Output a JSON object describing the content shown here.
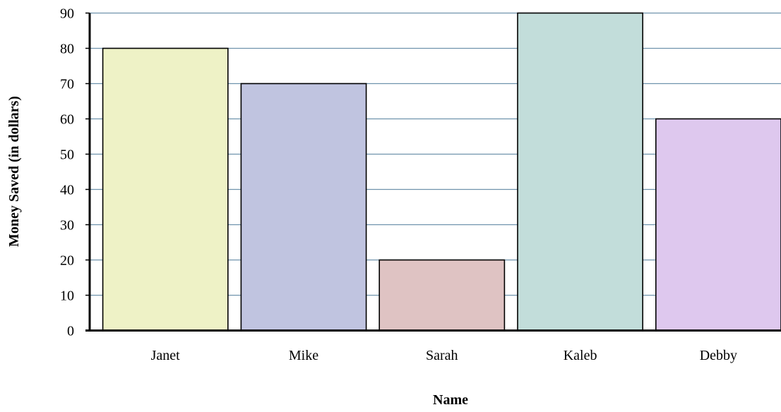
{
  "chart_data": {
    "type": "bar",
    "categories": [
      "Janet",
      "Mike",
      "Sarah",
      "Kaleb",
      "Debby"
    ],
    "values": [
      80,
      70,
      20,
      90,
      60
    ],
    "bar_colors": [
      "#eef2c6",
      "#c0c4e0",
      "#dfc3c3",
      "#c2ddda",
      "#dec8ee"
    ],
    "gridline_color": "#6f93ad",
    "title": "",
    "xlabel": "Name",
    "ylabel": "Money Saved (in dollars)",
    "ylim": [
      0,
      90
    ],
    "y_ticks": [
      0,
      10,
      20,
      30,
      40,
      50,
      60,
      70,
      80,
      90
    ],
    "grid": true,
    "legend": "none"
  }
}
